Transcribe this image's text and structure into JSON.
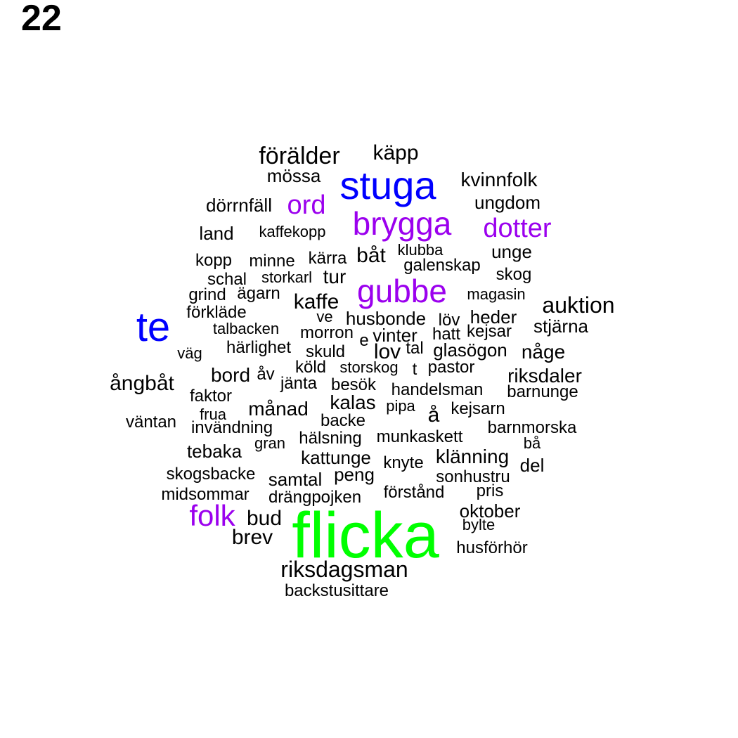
{
  "figure_number": "22",
  "colors": {
    "black": "#000000",
    "blue": "#0000ff",
    "purple": "#9b00ee",
    "green": "#00ff00"
  },
  "words": [
    {
      "text": "flicka",
      "color": "green"
    },
    {
      "text": "te",
      "color": "blue"
    },
    {
      "text": "stuga",
      "color": "blue"
    },
    {
      "text": "gubbe",
      "color": "purple"
    },
    {
      "text": "brygga",
      "color": "purple"
    },
    {
      "text": "folk",
      "color": "purple"
    },
    {
      "text": "dotter",
      "color": "purple"
    },
    {
      "text": "ord",
      "color": "purple"
    },
    {
      "text": "förälder",
      "color": "black"
    },
    {
      "text": "käpp",
      "color": "black"
    },
    {
      "text": "mössa",
      "color": "black"
    },
    {
      "text": "kvinnfolk",
      "color": "black"
    },
    {
      "text": "dörrnfäll",
      "color": "black"
    },
    {
      "text": "ungdom",
      "color": "black"
    },
    {
      "text": "land",
      "color": "black"
    },
    {
      "text": "kaffekopp",
      "color": "black"
    },
    {
      "text": "unge",
      "color": "black"
    },
    {
      "text": "klubba",
      "color": "black"
    },
    {
      "text": "båt",
      "color": "black"
    },
    {
      "text": "kopp",
      "color": "black"
    },
    {
      "text": "minne",
      "color": "black"
    },
    {
      "text": "kärra",
      "color": "black"
    },
    {
      "text": "galenskap",
      "color": "black"
    },
    {
      "text": "skog",
      "color": "black"
    },
    {
      "text": "schal",
      "color": "black"
    },
    {
      "text": "storkarl",
      "color": "black"
    },
    {
      "text": "tur",
      "color": "black"
    },
    {
      "text": "grind",
      "color": "black"
    },
    {
      "text": "ägarn",
      "color": "black"
    },
    {
      "text": "magasin",
      "color": "black"
    },
    {
      "text": "kaffe",
      "color": "black"
    },
    {
      "text": "auktion",
      "color": "black"
    },
    {
      "text": "förkläde",
      "color": "black"
    },
    {
      "text": "ve",
      "color": "black"
    },
    {
      "text": "husbonde",
      "color": "black"
    },
    {
      "text": "löv",
      "color": "black"
    },
    {
      "text": "heder",
      "color": "black"
    },
    {
      "text": "talbacken",
      "color": "black"
    },
    {
      "text": "morron",
      "color": "black"
    },
    {
      "text": "vinter",
      "color": "black"
    },
    {
      "text": "hatt",
      "color": "black"
    },
    {
      "text": "kejsar",
      "color": "black"
    },
    {
      "text": "stjärna",
      "color": "black"
    },
    {
      "text": "e",
      "color": "black"
    },
    {
      "text": "väg",
      "color": "black"
    },
    {
      "text": "härlighet",
      "color": "black"
    },
    {
      "text": "skuld",
      "color": "black"
    },
    {
      "text": "lov",
      "color": "black"
    },
    {
      "text": "tal",
      "color": "black"
    },
    {
      "text": "glasögon",
      "color": "black"
    },
    {
      "text": "någe",
      "color": "black"
    },
    {
      "text": "köld",
      "color": "black"
    },
    {
      "text": "storskog",
      "color": "black"
    },
    {
      "text": "t",
      "color": "black"
    },
    {
      "text": "pastor",
      "color": "black"
    },
    {
      "text": "bord",
      "color": "black"
    },
    {
      "text": "åv",
      "color": "black"
    },
    {
      "text": "riksdaler",
      "color": "black"
    },
    {
      "text": "ångbåt",
      "color": "black"
    },
    {
      "text": "jänta",
      "color": "black"
    },
    {
      "text": "besök",
      "color": "black"
    },
    {
      "text": "handelsman",
      "color": "black"
    },
    {
      "text": "barnunge",
      "color": "black"
    },
    {
      "text": "faktor",
      "color": "black"
    },
    {
      "text": "kalas",
      "color": "black"
    },
    {
      "text": "pipa",
      "color": "black"
    },
    {
      "text": "månad",
      "color": "black"
    },
    {
      "text": "å",
      "color": "black"
    },
    {
      "text": "kejsarn",
      "color": "black"
    },
    {
      "text": "frua",
      "color": "black"
    },
    {
      "text": "backe",
      "color": "black"
    },
    {
      "text": "väntan",
      "color": "black"
    },
    {
      "text": "invändning",
      "color": "black"
    },
    {
      "text": "barnmorska",
      "color": "black"
    },
    {
      "text": "munkaskett",
      "color": "black"
    },
    {
      "text": "gran",
      "color": "black"
    },
    {
      "text": "hälsning",
      "color": "black"
    },
    {
      "text": "bå",
      "color": "black"
    },
    {
      "text": "tebaka",
      "color": "black"
    },
    {
      "text": "klänning",
      "color": "black"
    },
    {
      "text": "kattunge",
      "color": "black"
    },
    {
      "text": "knyte",
      "color": "black"
    },
    {
      "text": "del",
      "color": "black"
    },
    {
      "text": "skogsbacke",
      "color": "black"
    },
    {
      "text": "peng",
      "color": "black"
    },
    {
      "text": "samtal",
      "color": "black"
    },
    {
      "text": "sonhustru",
      "color": "black"
    },
    {
      "text": "midsommar",
      "color": "black"
    },
    {
      "text": "drängpojken",
      "color": "black"
    },
    {
      "text": "förstånd",
      "color": "black"
    },
    {
      "text": "pris",
      "color": "black"
    },
    {
      "text": "oktober",
      "color": "black"
    },
    {
      "text": "bud",
      "color": "black"
    },
    {
      "text": "bylte",
      "color": "black"
    },
    {
      "text": "brev",
      "color": "black"
    },
    {
      "text": "husförhör",
      "color": "black"
    },
    {
      "text": "riksdagsman",
      "color": "black"
    },
    {
      "text": "backstusittare",
      "color": "black"
    }
  ]
}
